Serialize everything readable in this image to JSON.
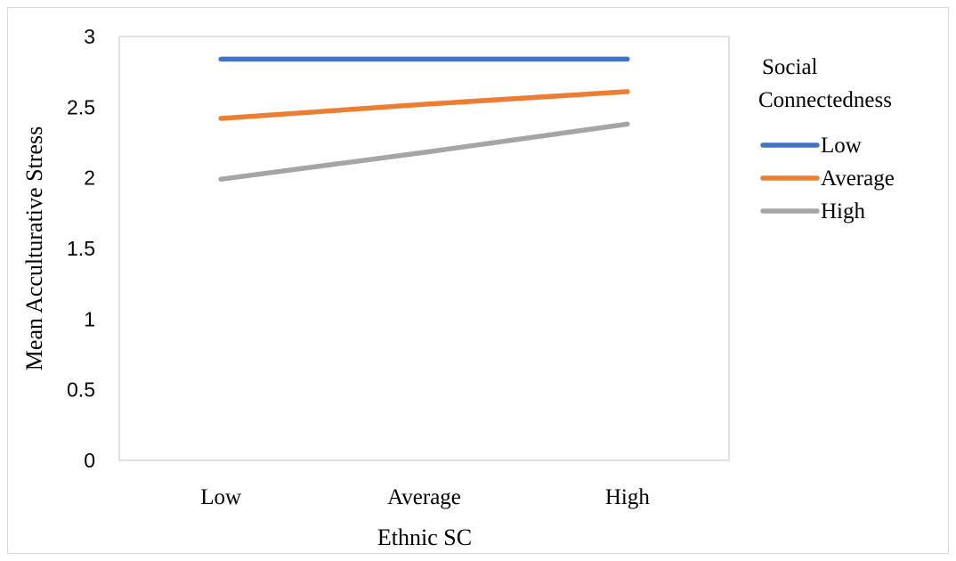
{
  "chart_data": {
    "type": "line",
    "categories": [
      "Low",
      "Average",
      "High"
    ],
    "series": [
      {
        "name": "Low",
        "color": "#4472C4",
        "values": [
          2.84,
          2.84,
          2.84
        ]
      },
      {
        "name": "Average",
        "color": "#ED7D31",
        "values": [
          2.42,
          2.52,
          2.61
        ]
      },
      {
        "name": "High",
        "color": "#A5A5A5",
        "values": [
          1.99,
          2.18,
          2.38
        ]
      }
    ],
    "xlabel": "Ethnic SC",
    "ylabel": "Mean Acculturative Stress",
    "ylim": [
      0,
      3
    ],
    "yticks": [
      "0",
      "0.5",
      "1",
      "1.5",
      "2",
      "2.5",
      "3"
    ],
    "legend": {
      "title_lines": [
        "Social",
        "Connectedness"
      ],
      "placement": "right"
    },
    "grid": false
  }
}
